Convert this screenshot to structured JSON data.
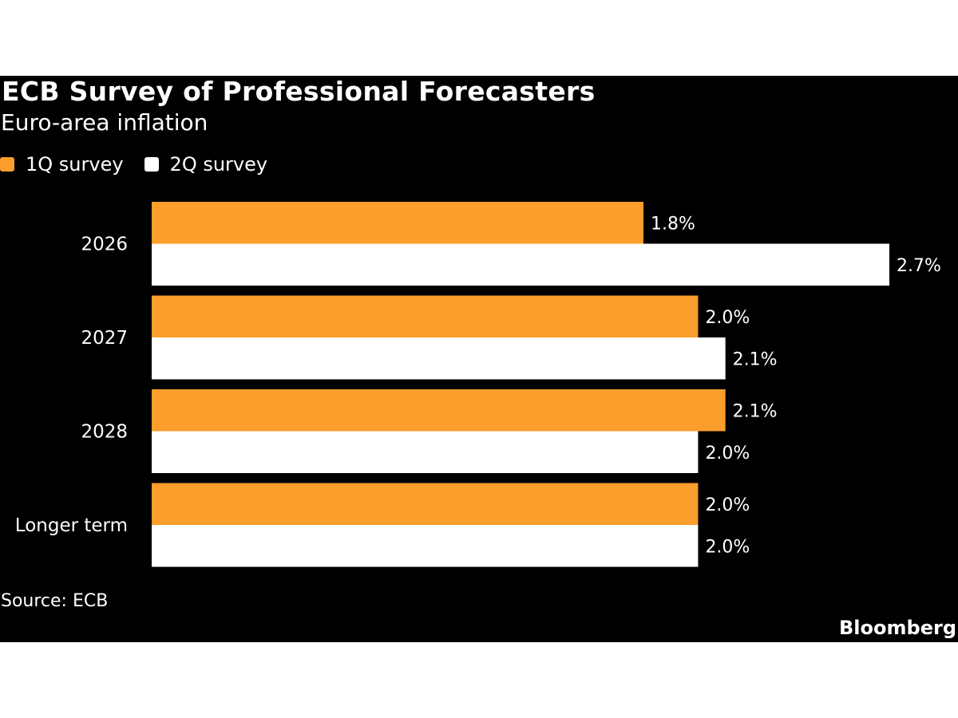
{
  "chart_data": {
    "type": "bar",
    "orientation": "horizontal",
    "title": "ECB Survey of Professional Forecasters",
    "subtitle": "Euro-area inflation",
    "categories": [
      "2026",
      "2027",
      "2028",
      "Longer term"
    ],
    "series": [
      {
        "name": "1Q survey",
        "color": "#FB9E2B",
        "values": [
          1.8,
          2.0,
          2.1,
          2.0
        ],
        "labels": [
          "1.8%",
          "2.0%",
          "2.1%",
          "2.0%"
        ]
      },
      {
        "name": "2Q survey",
        "color": "#FFFFFF",
        "values": [
          2.7,
          2.1,
          2.0,
          2.0
        ],
        "labels": [
          "2.7%",
          "2.1%",
          "2.0%",
          "2.0%"
        ]
      }
    ],
    "xlim": [
      0,
      2.7
    ],
    "legend_position": "top-left",
    "grid": false,
    "background": "#000000"
  },
  "source": "Source: ECB",
  "brand": "Bloomberg"
}
